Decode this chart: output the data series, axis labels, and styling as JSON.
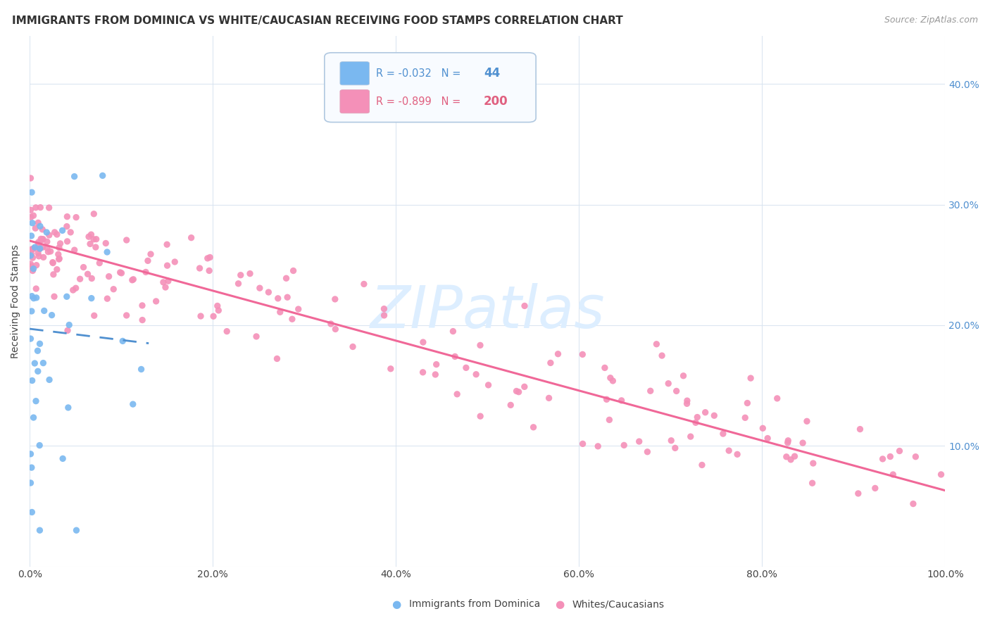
{
  "title": "IMMIGRANTS FROM DOMINICA VS WHITE/CAUCASIAN RECEIVING FOOD STAMPS CORRELATION CHART",
  "source": "Source: ZipAtlas.com",
  "ylabel": "Receiving Food Stamps",
  "ytick_values": [
    0.0,
    0.1,
    0.2,
    0.3,
    0.4
  ],
  "ytick_labels_left": [
    "",
    "",
    "",
    "",
    ""
  ],
  "ytick_labels_right": [
    "",
    "10.0%",
    "20.0%",
    "30.0%",
    "40.0%"
  ],
  "xtick_values": [
    0.0,
    0.2,
    0.4,
    0.6,
    0.8,
    1.0
  ],
  "xtick_labels": [
    "0.0%",
    "20.0%",
    "40.0%",
    "60.0%",
    "80.0%",
    "100.0%"
  ],
  "xlim": [
    0.0,
    1.0
  ],
  "ylim": [
    0.0,
    0.44
  ],
  "legend_blue_R": "-0.032",
  "legend_blue_N": "44",
  "legend_pink_R": "-0.899",
  "legend_pink_N": "200",
  "blue_color": "#7ab8f0",
  "pink_color": "#f490b8",
  "blue_line_color": "#5090d0",
  "pink_line_color": "#f06898",
  "watermark_text": "ZIPatlas",
  "watermark_color": "#ddeeff",
  "pink_trendline_x0": 0.0,
  "pink_trendline_x1": 1.0,
  "pink_trendline_y0": 0.27,
  "pink_trendline_y1": 0.063,
  "blue_trendline_x0": 0.0,
  "blue_trendline_x1": 0.13,
  "blue_trendline_y0": 0.197,
  "blue_trendline_y1": 0.185,
  "blue_seed": 42,
  "pink_seed": 99,
  "grid_color": "#d8e4f0",
  "title_fontsize": 11,
  "source_fontsize": 9,
  "tick_fontsize": 10,
  "ylabel_fontsize": 10,
  "right_tick_color": "#5090d0",
  "legend_edge_color": "#b0c8e0",
  "legend_face_color": "#f8fbff"
}
